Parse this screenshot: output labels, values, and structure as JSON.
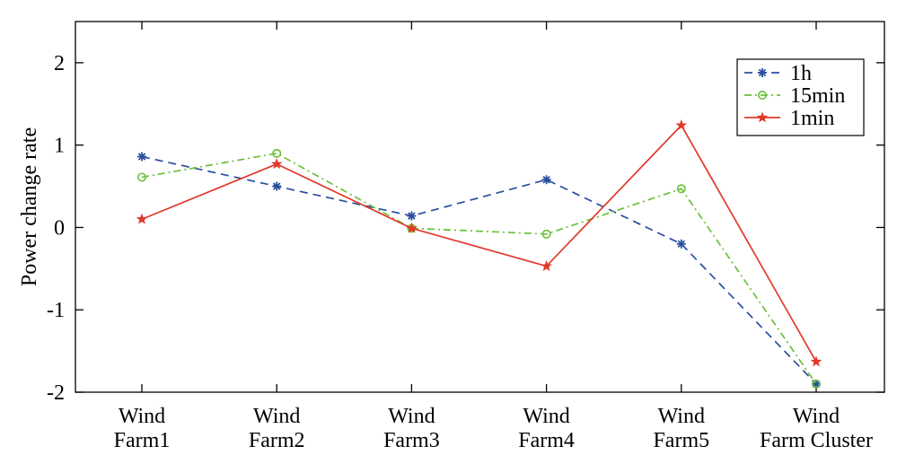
{
  "chart_data": {
    "type": "line",
    "title": "",
    "xlabel": "",
    "ylabel": "Power change rate",
    "ylim": [
      -2,
      2.5
    ],
    "yticks": [
      -2,
      -1,
      0,
      1,
      2
    ],
    "ytick_labels": [
      "-2",
      "-1",
      "0",
      "1",
      "2"
    ],
    "categories": [
      [
        "Wind",
        "Farm1"
      ],
      [
        "Wind",
        "Farm2"
      ],
      [
        "Wind",
        "Farm3"
      ],
      [
        "Wind",
        "Farm4"
      ],
      [
        "Wind",
        "Farm5"
      ],
      [
        "Wind",
        "Farm Cluster"
      ]
    ],
    "grid": false,
    "legend_position": "top-right",
    "series": [
      {
        "name": "1h",
        "color": "#2b4f9e",
        "dash": "dashed",
        "marker": "asterisk",
        "values": [
          0.86,
          0.5,
          0.14,
          0.58,
          -0.2,
          -1.9
        ]
      },
      {
        "name": "15min",
        "color": "#6bbf3a",
        "dash": "dashdot",
        "marker": "circle",
        "values": [
          0.61,
          0.9,
          -0.01,
          -0.08,
          0.47,
          -1.9
        ]
      },
      {
        "name": "1min",
        "color": "#e0392b",
        "dash": "solid",
        "marker": "star",
        "values": [
          0.1,
          0.77,
          -0.01,
          -0.47,
          1.24,
          -1.63
        ]
      }
    ]
  }
}
